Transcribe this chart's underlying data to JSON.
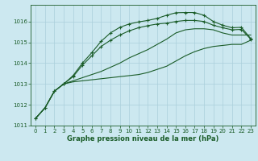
{
  "title": "Graphe pression niveau de la mer (hPa)",
  "bg_color": "#cce8f0",
  "grid_color": "#aacfdb",
  "line_color": "#1a5c28",
  "xlim": [
    -0.5,
    23.5
  ],
  "ylim": [
    1011.0,
    1016.8
  ],
  "yticks": [
    1011,
    1012,
    1013,
    1014,
    1015,
    1016
  ],
  "xticks": [
    0,
    1,
    2,
    3,
    4,
    5,
    6,
    7,
    8,
    9,
    10,
    11,
    12,
    13,
    14,
    15,
    16,
    17,
    18,
    19,
    20,
    21,
    22,
    23
  ],
  "series": [
    {
      "y": [
        1011.35,
        1011.85,
        1012.65,
        1013.0,
        1013.1,
        1013.15,
        1013.2,
        1013.25,
        1013.3,
        1013.35,
        1013.4,
        1013.45,
        1013.55,
        1013.7,
        1013.85,
        1014.1,
        1014.35,
        1014.55,
        1014.7,
        1014.8,
        1014.85,
        1014.9,
        1014.9,
        1015.1
      ],
      "marker": false,
      "linestyle": "-"
    },
    {
      "y": [
        1011.35,
        1011.85,
        1012.65,
        1013.0,
        1013.15,
        1013.3,
        1013.45,
        1013.6,
        1013.8,
        1014.0,
        1014.25,
        1014.45,
        1014.65,
        1014.9,
        1015.15,
        1015.45,
        1015.6,
        1015.65,
        1015.65,
        1015.6,
        1015.45,
        1015.35,
        1015.35,
        1015.35
      ],
      "marker": false,
      "linestyle": "-"
    },
    {
      "y": [
        1011.35,
        1011.85,
        1012.65,
        1013.0,
        1013.35,
        1013.9,
        1014.35,
        1014.8,
        1015.1,
        1015.35,
        1015.55,
        1015.7,
        1015.8,
        1015.88,
        1015.92,
        1016.0,
        1016.05,
        1016.05,
        1016.0,
        1015.82,
        1015.7,
        1015.6,
        1015.62,
        1015.15
      ],
      "marker": true,
      "linestyle": "-"
    },
    {
      "y": [
        1011.35,
        1011.85,
        1012.65,
        1013.0,
        1013.4,
        1014.0,
        1014.5,
        1015.05,
        1015.45,
        1015.72,
        1015.88,
        1015.98,
        1016.05,
        1016.15,
        1016.3,
        1016.42,
        1016.43,
        1016.43,
        1016.3,
        1016.0,
        1015.82,
        1015.7,
        1015.72,
        1015.18
      ],
      "marker": true,
      "linestyle": "-"
    }
  ],
  "marker_style": "+",
  "marker_size": 3.5,
  "linewidth": 0.8,
  "font_color": "#1a5c28",
  "tick_fontsize": 5,
  "label_fontsize": 6
}
